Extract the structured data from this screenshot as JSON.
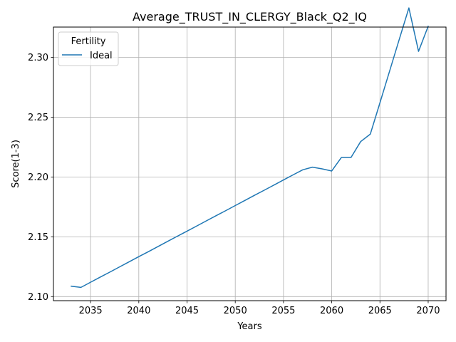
{
  "chart_data": {
    "type": "line",
    "title": "Average_TRUST_IN_CLERGY_Black_Q2_IQ",
    "xlabel": "Years",
    "ylabel": "Score(1-3)",
    "xlim": [
      2031.15,
      2071.85
    ],
    "ylim": [
      2.0966,
      2.3253
    ],
    "xticks": [
      2035,
      2040,
      2045,
      2050,
      2055,
      2060,
      2065,
      2070
    ],
    "yticks": [
      2.1,
      2.15,
      2.2,
      2.25,
      2.3
    ],
    "ytick_labels": [
      "2.10",
      "2.15",
      "2.20",
      "2.25",
      "2.30"
    ],
    "grid": true,
    "legend": {
      "title": "Fertility",
      "placement": "top-left"
    },
    "series": [
      {
        "name": "Ideal",
        "color": "#1f77b4",
        "x": [
          2033,
          2034,
          2035,
          2036,
          2037,
          2038,
          2039,
          2040,
          2041,
          2042,
          2043,
          2044,
          2045,
          2046,
          2047,
          2048,
          2049,
          2050,
          2051,
          2052,
          2053,
          2054,
          2055,
          2056,
          2057,
          2058,
          2059,
          2060,
          2061,
          2062,
          2063,
          2064,
          2065,
          2066,
          2067,
          2068,
          2069,
          2070
        ],
        "y": [
          2.1087,
          2.1077,
          2.112,
          2.1163,
          2.1205,
          2.1248,
          2.1291,
          2.1334,
          2.1376,
          2.1419,
          2.1462,
          2.1505,
          2.1547,
          2.159,
          2.1633,
          2.1676,
          2.1718,
          2.1761,
          2.1804,
          2.1847,
          2.1889,
          2.1932,
          2.1975,
          2.2018,
          2.206,
          2.2082,
          2.2068,
          2.205,
          2.2163,
          2.2163,
          2.2296,
          2.2358,
          2.262,
          2.2885,
          2.315,
          2.3413,
          2.305,
          2.326
        ]
      }
    ]
  }
}
